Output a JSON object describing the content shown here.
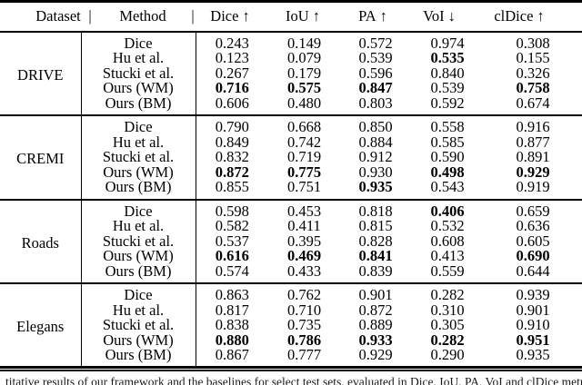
{
  "header": {
    "dataset": "Dataset",
    "method": "Method",
    "separator": "|",
    "metrics": [
      {
        "label": "Dice",
        "arrow": "↑"
      },
      {
        "label": "IoU",
        "arrow": "↑"
      },
      {
        "label": "PA",
        "arrow": "↑"
      },
      {
        "label": "VoI",
        "arrow": "↓"
      },
      {
        "label": "clDice",
        "arrow": "↑"
      }
    ]
  },
  "sections": [
    {
      "dataset": "DRIVE",
      "rows": [
        {
          "method": "Dice",
          "values": [
            "0.243",
            "0.149",
            "0.572",
            "0.974",
            "0.308"
          ],
          "bold": [
            false,
            false,
            false,
            false,
            false
          ]
        },
        {
          "method": "Hu et al.",
          "values": [
            "0.123",
            "0.079",
            "0.539",
            "0.535",
            "0.155"
          ],
          "bold": [
            false,
            false,
            false,
            true,
            false
          ]
        },
        {
          "method": "Stucki et al.",
          "values": [
            "0.267",
            "0.179",
            "0.596",
            "0.840",
            "0.326"
          ],
          "bold": [
            false,
            false,
            false,
            false,
            false
          ]
        },
        {
          "method": "Ours (WM)",
          "values": [
            "0.716",
            "0.575",
            "0.847",
            "0.539",
            "0.758"
          ],
          "bold": [
            true,
            true,
            true,
            false,
            true
          ]
        },
        {
          "method": "Ours (BM)",
          "values": [
            "0.606",
            "0.480",
            "0.803",
            "0.592",
            "0.674"
          ],
          "bold": [
            false,
            false,
            false,
            false,
            false
          ]
        }
      ]
    },
    {
      "dataset": "CREMI",
      "rows": [
        {
          "method": "Dice",
          "values": [
            "0.790",
            "0.668",
            "0.850",
            "0.558",
            "0.916"
          ],
          "bold": [
            false,
            false,
            false,
            false,
            false
          ]
        },
        {
          "method": "Hu et al.",
          "values": [
            "0.849",
            "0.742",
            "0.884",
            "0.585",
            "0.877"
          ],
          "bold": [
            false,
            false,
            false,
            false,
            false
          ]
        },
        {
          "method": "Stucki et al.",
          "values": [
            "0.832",
            "0.719",
            "0.912",
            "0.590",
            "0.891"
          ],
          "bold": [
            false,
            false,
            false,
            false,
            false
          ]
        },
        {
          "method": "Ours (WM)",
          "values": [
            "0.872",
            "0.775",
            "0.930",
            "0.498",
            "0.929"
          ],
          "bold": [
            true,
            true,
            false,
            true,
            true
          ]
        },
        {
          "method": "Ours (BM)",
          "values": [
            "0.855",
            "0.751",
            "0.935",
            "0.543",
            "0.919"
          ],
          "bold": [
            false,
            false,
            true,
            false,
            false
          ]
        }
      ]
    },
    {
      "dataset": "Roads",
      "rows": [
        {
          "method": "Dice",
          "values": [
            "0.598",
            "0.453",
            "0.818",
            "0.406",
            "0.659"
          ],
          "bold": [
            false,
            false,
            false,
            true,
            false
          ]
        },
        {
          "method": "Hu et al.",
          "values": [
            "0.582",
            "0.411",
            "0.815",
            "0.532",
            "0.636"
          ],
          "bold": [
            false,
            false,
            false,
            false,
            false
          ]
        },
        {
          "method": "Stucki et al.",
          "values": [
            "0.537",
            "0.395",
            "0.828",
            "0.608",
            "0.605"
          ],
          "bold": [
            false,
            false,
            false,
            false,
            false
          ]
        },
        {
          "method": "Ours (WM)",
          "values": [
            "0.616",
            "0.469",
            "0.841",
            "0.413",
            "0.690"
          ],
          "bold": [
            true,
            true,
            true,
            false,
            true
          ]
        },
        {
          "method": "Ours (BM)",
          "values": [
            "0.574",
            "0.433",
            "0.839",
            "0.559",
            "0.644"
          ],
          "bold": [
            false,
            false,
            false,
            false,
            false
          ]
        }
      ]
    },
    {
      "dataset": "Elegans",
      "rows": [
        {
          "method": "Dice",
          "values": [
            "0.863",
            "0.762",
            "0.901",
            "0.282",
            "0.939"
          ],
          "bold": [
            false,
            false,
            false,
            false,
            false
          ]
        },
        {
          "method": "Hu et al.",
          "values": [
            "0.817",
            "0.710",
            "0.872",
            "0.310",
            "0.901"
          ],
          "bold": [
            false,
            false,
            false,
            false,
            false
          ]
        },
        {
          "method": "Stucki et al.",
          "values": [
            "0.838",
            "0.735",
            "0.889",
            "0.305",
            "0.910"
          ],
          "bold": [
            false,
            false,
            false,
            false,
            false
          ]
        },
        {
          "method": "Ours (WM)",
          "values": [
            "0.880",
            "0.786",
            "0.933",
            "0.282",
            "0.951"
          ],
          "bold": [
            true,
            true,
            true,
            true,
            true
          ]
        },
        {
          "method": "Ours (BM)",
          "values": [
            "0.867",
            "0.777",
            "0.929",
            "0.290",
            "0.935"
          ],
          "bold": [
            false,
            false,
            false,
            false,
            false
          ]
        }
      ]
    }
  ],
  "caption_partial": "titative results of our framework and the baselines for select test sets, evaluated in Dice, IoU, PA, VoI and clDice metrics, using the W",
  "colors": {
    "text": "#000000",
    "background": "#ffffff",
    "rule": "#000000"
  }
}
